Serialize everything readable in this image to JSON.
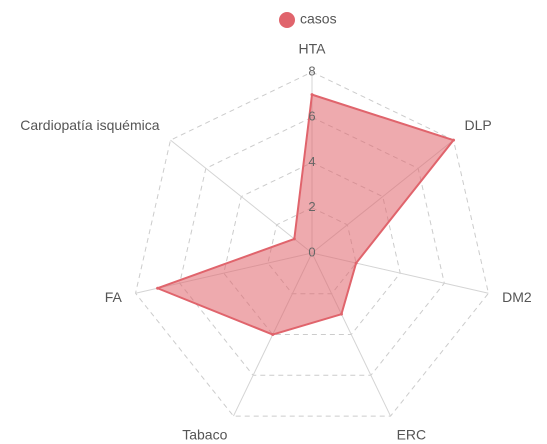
{
  "chart_data": {
    "type": "radar",
    "categories": [
      "HTA",
      "DLP",
      "DM2",
      "ERC",
      "Tabaco",
      "FA",
      "Cardiopatía isquémica"
    ],
    "series": [
      {
        "name": "casos",
        "color": "#e0646c",
        "values": [
          7,
          8,
          2,
          3,
          4,
          7,
          1
        ]
      }
    ],
    "ylim": [
      0,
      8
    ],
    "yticks": [
      0,
      2,
      4,
      6,
      8
    ],
    "grid": true,
    "legend": "top"
  }
}
